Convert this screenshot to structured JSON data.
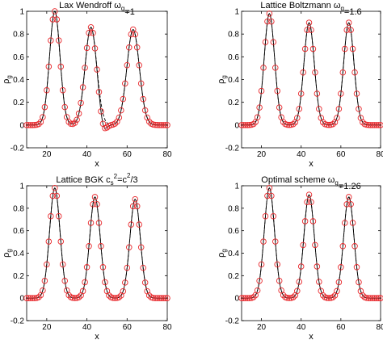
{
  "chart_data": [
    {
      "type": "scatter",
      "title": "Lax Wendroff ω",
      "title_sub": "g",
      "title_tail": "=1",
      "xlabel": "x",
      "ylabel": "ρ",
      "ylabel_sub": "g",
      "xlim": [
        10,
        80
      ],
      "ylim": [
        -0.2,
        1.0
      ],
      "xticks": [
        "20",
        "40",
        "60",
        "80"
      ],
      "yticks": [
        "-0.2",
        "0",
        "0.2",
        "0.4",
        "0.6",
        "0.8",
        "1"
      ],
      "grid": false,
      "line_color": "#000000",
      "marker_color": "#e8262a",
      "peaks": [
        {
          "center": 24,
          "height": 1.0,
          "width": 2.6
        },
        {
          "center": 42,
          "height": 0.86,
          "width": 2.9
        },
        {
          "center": 63,
          "height": 0.84,
          "width": 3.1
        }
      ],
      "undershoot": [
        {
          "center": 48,
          "depth": -0.09,
          "width": 1.6
        }
      ]
    },
    {
      "type": "scatter",
      "title": "Lattice Boltzmann ω",
      "title_sub": "g",
      "title_tail": "=1.6",
      "xlabel": "x",
      "ylabel": "ρ",
      "ylabel_sub": "g",
      "xlim": [
        10,
        80
      ],
      "ylim": [
        -0.2,
        1.0
      ],
      "xticks": [
        "20",
        "40",
        "60",
        "80"
      ],
      "yticks": [
        "-0.2",
        "0",
        "0.2",
        "0.4",
        "0.6",
        "0.8",
        "1"
      ],
      "grid": false,
      "line_color": "#000000",
      "marker_color": "#e8262a",
      "peaks": [
        {
          "center": 24,
          "height": 0.98,
          "width": 2.6
        },
        {
          "center": 44,
          "height": 0.9,
          "width": 2.6
        },
        {
          "center": 64,
          "height": 0.9,
          "width": 2.6
        }
      ],
      "undershoot": []
    },
    {
      "type": "scatter",
      "title": "Lattice BGK c",
      "title_sub": "s",
      "title_sup": "2",
      "title_tail": "=c",
      "title_sup2": "2",
      "title_tail2": "/3",
      "xlabel": "x",
      "ylabel": "ρ",
      "ylabel_sub": "g",
      "xlim": [
        10,
        80
      ],
      "ylim": [
        -0.2,
        1.0
      ],
      "xticks": [
        "20",
        "40",
        "60",
        "80"
      ],
      "yticks": [
        "-0.2",
        "0",
        "0.2",
        "0.4",
        "0.6",
        "0.8",
        "1"
      ],
      "grid": false,
      "line_color": "#000000",
      "marker_color": "#e8262a",
      "peaks": [
        {
          "center": 24,
          "height": 0.98,
          "width": 2.6
        },
        {
          "center": 44,
          "height": 0.9,
          "width": 2.6
        },
        {
          "center": 64,
          "height": 0.88,
          "width": 2.6
        }
      ],
      "undershoot": []
    },
    {
      "type": "scatter",
      "title": "Optimal scheme ω",
      "title_sub": "g",
      "title_tail": "=1.26",
      "xlabel": "x",
      "ylabel": "ρ",
      "ylabel_sub": "g",
      "xlim": [
        10,
        80
      ],
      "ylim": [
        -0.2,
        1.0
      ],
      "xticks": [
        "20",
        "40",
        "60",
        "80"
      ],
      "yticks": [
        "-0.2",
        "0",
        "0.2",
        "0.4",
        "0.6",
        "0.8",
        "1"
      ],
      "grid": false,
      "line_color": "#000000",
      "marker_color": "#e8262a",
      "peaks": [
        {
          "center": 24,
          "height": 0.98,
          "width": 2.6
        },
        {
          "center": 44,
          "height": 0.92,
          "width": 2.6
        },
        {
          "center": 64,
          "height": 0.9,
          "width": 2.6
        }
      ],
      "undershoot": []
    }
  ]
}
